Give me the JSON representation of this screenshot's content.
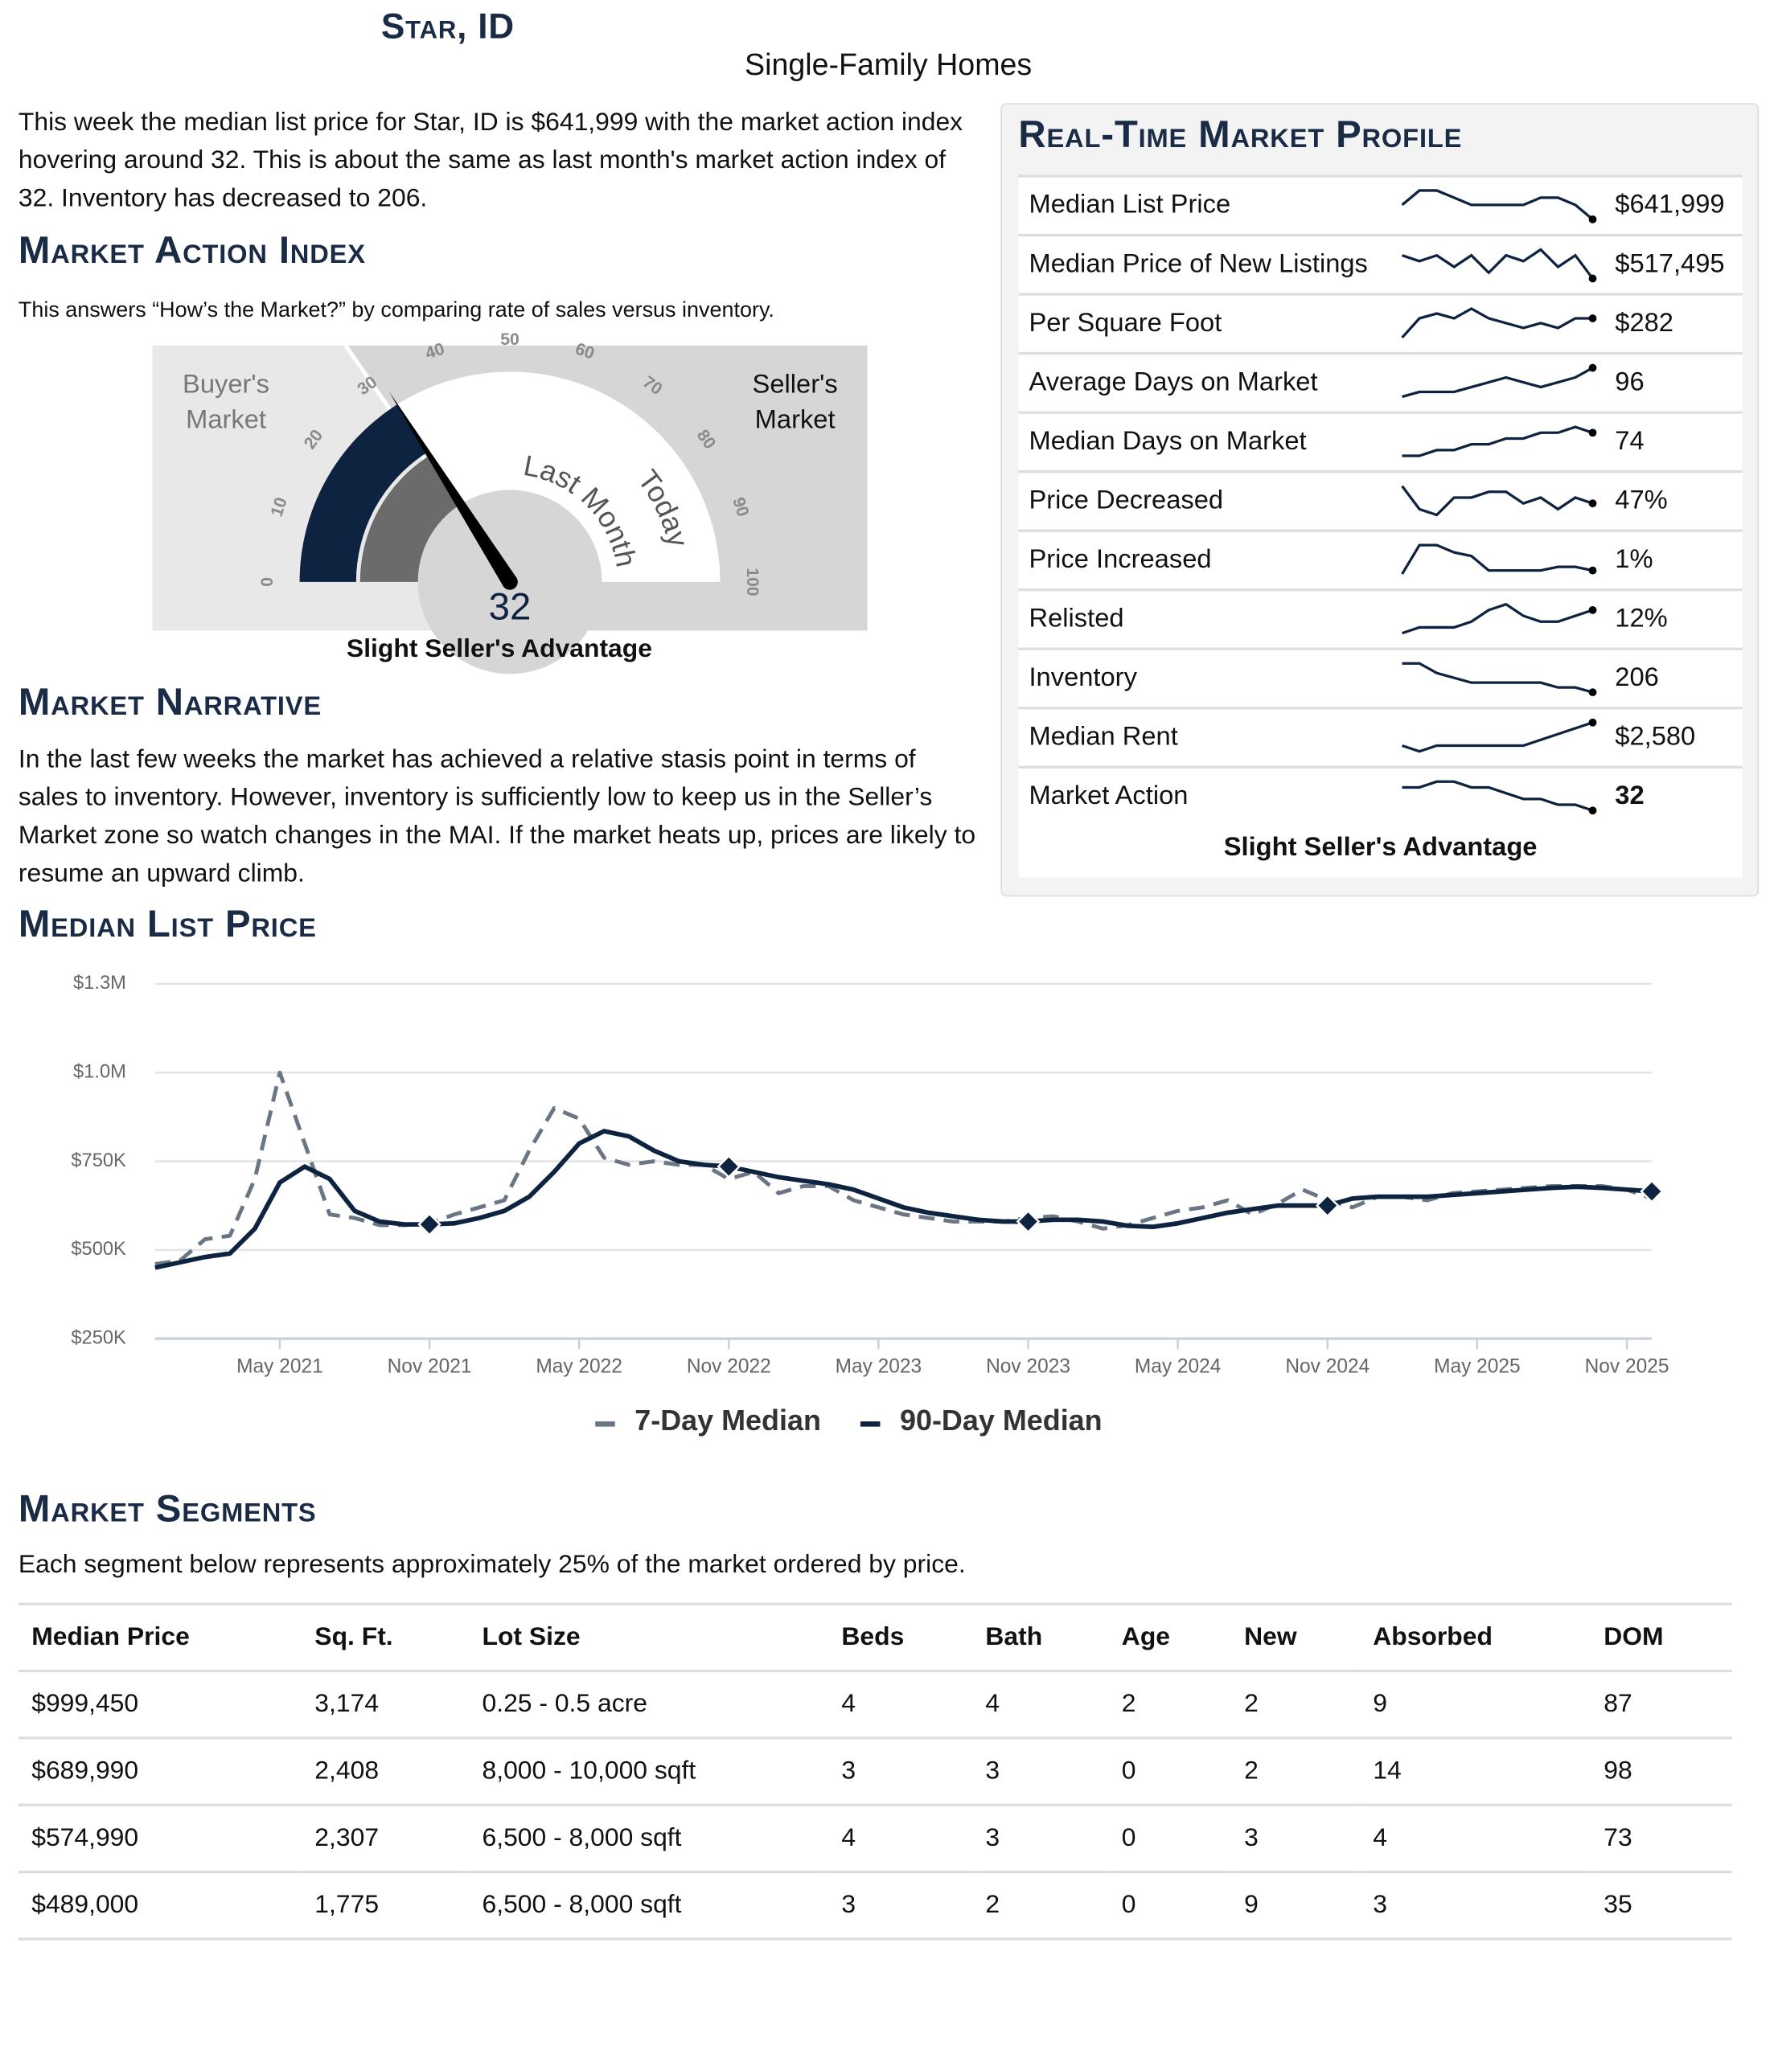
{
  "header": {
    "title": "Star, ID",
    "subtitle": "Single-Family Homes"
  },
  "intro": "This week the median list price for Star, ID is $641,999 with the market action index hovering around 32. This is about the same as last month's market action index of 32. Inventory has decreased to 206.",
  "market_action_index": {
    "heading": "Market Action Index",
    "description": "This answers “How’s the Market?” by comparing rate of sales versus inventory.",
    "gauge": {
      "value": 32,
      "value_label": "32",
      "last_month": 32,
      "range": [
        0,
        100
      ],
      "ticks": [
        0,
        10,
        20,
        30,
        40,
        50,
        60,
        70,
        80,
        90,
        100
      ],
      "buyers_label": "Buyer's Market",
      "sellers_label": "Seller's Market",
      "last_month_label": "Last Month",
      "today_label": "Today",
      "verdict": "Slight Seller's Advantage"
    }
  },
  "narrative": {
    "heading": "Market Narrative",
    "text": "In the last few weeks the market has achieved a relative stasis point in terms of sales to inventory. However, inventory is sufficiently low to keep us in the Seller’s Market zone so watch changes in the MAI. If the market heats up, prices are likely to resume an upward climb."
  },
  "profile": {
    "heading": "Real-Time Market Profile",
    "rows": [
      {
        "label": "Median List Price",
        "value": "$641,999",
        "trend": [
          5,
          7,
          7,
          6,
          5,
          5,
          5,
          5,
          6,
          6,
          5,
          3
        ]
      },
      {
        "label": "Median Price of New Listings",
        "value": "$517,495",
        "trend": [
          6,
          5,
          6,
          4,
          6,
          3,
          6,
          5,
          7,
          4,
          6,
          2
        ]
      },
      {
        "label": "Per Square Foot",
        "value": "$282",
        "trend": [
          2,
          6,
          7,
          6,
          8,
          6,
          5,
          4,
          5,
          4,
          6,
          6
        ]
      },
      {
        "label": "Average Days on Market",
        "value": "96",
        "trend": [
          2,
          3,
          3,
          3,
          4,
          5,
          6,
          5,
          4,
          5,
          6,
          8
        ]
      },
      {
        "label": "Median Days on Market",
        "value": "74",
        "trend": [
          1,
          1,
          2,
          2,
          3,
          3,
          4,
          4,
          5,
          5,
          6,
          5
        ]
      },
      {
        "label": "Price Decreased",
        "value": "47%",
        "trend": [
          8,
          4,
          3,
          6,
          6,
          7,
          7,
          5,
          6,
          4,
          6,
          5
        ]
      },
      {
        "label": "Price Increased",
        "value": "1%",
        "trend": [
          0,
          8,
          8,
          6,
          5,
          1,
          1,
          1,
          1,
          2,
          2,
          1
        ]
      },
      {
        "label": "Relisted",
        "value": "12%",
        "trend": [
          2,
          3,
          3,
          3,
          4,
          6,
          7,
          5,
          4,
          4,
          5,
          6
        ]
      },
      {
        "label": "Inventory",
        "value": "206",
        "trend": [
          9,
          9,
          7,
          6,
          5,
          5,
          5,
          5,
          5,
          4,
          4,
          3
        ]
      },
      {
        "label": "Median Rent",
        "value": "$2,580",
        "trend": [
          3,
          2,
          3,
          3,
          3,
          3,
          3,
          3,
          4,
          5,
          6,
          7
        ]
      },
      {
        "label": "Market Action",
        "value": "32",
        "trend": [
          6,
          6,
          7,
          7,
          6,
          6,
          5,
          4,
          4,
          3,
          3,
          2
        ]
      }
    ],
    "verdict": "Slight Seller's Advantage"
  },
  "chart_data": {
    "type": "line",
    "title": "Median List Price",
    "x": [
      "2020-12",
      "2021-01",
      "2021-02",
      "2021-03",
      "2021-04",
      "2021-05",
      "2021-06",
      "2021-07",
      "2021-08",
      "2021-09",
      "2021-10",
      "2021-11",
      "2021-12",
      "2022-01",
      "2022-02",
      "2022-03",
      "2022-04",
      "2022-05",
      "2022-06",
      "2022-07",
      "2022-08",
      "2022-09",
      "2022-10",
      "2022-11",
      "2022-12",
      "2023-01",
      "2023-02",
      "2023-03",
      "2023-04",
      "2023-05",
      "2023-06",
      "2023-07",
      "2023-08",
      "2023-09",
      "2023-10",
      "2023-11",
      "2023-12",
      "2024-01",
      "2024-02",
      "2024-03",
      "2024-04",
      "2024-05",
      "2024-06",
      "2024-07",
      "2024-08",
      "2024-09",
      "2024-10",
      "2024-11",
      "2024-12",
      "2025-01",
      "2025-02",
      "2025-03",
      "2025-04",
      "2025-05",
      "2025-06",
      "2025-07",
      "2025-08",
      "2025-09",
      "2025-10",
      "2025-11",
      "2025-12"
    ],
    "xlim": [
      "2020-12",
      "2025-12"
    ],
    "xticks": [
      {
        "value": "2021-05",
        "label": "May 2021"
      },
      {
        "value": "2021-11",
        "label": "Nov 2021"
      },
      {
        "value": "2022-05",
        "label": "May 2022"
      },
      {
        "value": "2022-11",
        "label": "Nov 2022"
      },
      {
        "value": "2023-05",
        "label": "May 2023"
      },
      {
        "value": "2023-11",
        "label": "Nov 2023"
      },
      {
        "value": "2024-05",
        "label": "May 2024"
      },
      {
        "value": "2024-11",
        "label": "Nov 2024"
      },
      {
        "value": "2025-05",
        "label": "May 2025"
      },
      {
        "value": "2025-11",
        "label": "Nov 2025"
      }
    ],
    "ylim": [
      250000,
      1250000
    ],
    "yticks": [
      {
        "value": 250000,
        "label": "$250K"
      },
      {
        "value": 500000,
        "label": "$500K"
      },
      {
        "value": 750000,
        "label": "$750K"
      },
      {
        "value": 1000000,
        "label": "$1.0M"
      },
      {
        "value": 1250000,
        "label": "$1.3M"
      }
    ],
    "grid": true,
    "legend": "bottom",
    "series": [
      {
        "name": "7-Day Median",
        "color": "#6b7685",
        "dashed": true,
        "values": [
          460000,
          470000,
          530000,
          540000,
          700000,
          1000000,
          800000,
          600000,
          590000,
          570000,
          570000,
          575000,
          600000,
          620000,
          640000,
          780000,
          900000,
          870000,
          760000,
          740000,
          750000,
          740000,
          740000,
          700000,
          720000,
          660000,
          680000,
          680000,
          640000,
          620000,
          600000,
          590000,
          580000,
          580000,
          580000,
          590000,
          595000,
          580000,
          560000,
          570000,
          590000,
          610000,
          620000,
          640000,
          600000,
          630000,
          670000,
          640000,
          620000,
          650000,
          650000,
          640000,
          660000,
          665000,
          670000,
          675000,
          680000,
          680000,
          680000,
          670000,
          645000
        ]
      },
      {
        "name": "90-Day Median",
        "color": "#0e2340",
        "dashed": false,
        "values": [
          450000,
          465000,
          480000,
          490000,
          560000,
          690000,
          735000,
          700000,
          610000,
          580000,
          572000,
          572000,
          575000,
          590000,
          610000,
          650000,
          720000,
          800000,
          835000,
          820000,
          780000,
          750000,
          740000,
          735000,
          720000,
          705000,
          695000,
          685000,
          670000,
          645000,
          620000,
          605000,
          595000,
          585000,
          580000,
          580000,
          585000,
          585000,
          580000,
          568000,
          565000,
          575000,
          590000,
          605000,
          615000,
          625000,
          625000,
          625000,
          645000,
          650000,
          650000,
          650000,
          655000,
          660000,
          665000,
          670000,
          675000,
          678000,
          675000,
          670000,
          665000
        ]
      }
    ]
  },
  "segments": {
    "heading": "Market Segments",
    "description": "Each segment below represents approximately 25% of the market ordered by price.",
    "columns": [
      "Median Price",
      "Sq. Ft.",
      "Lot Size",
      "Beds",
      "Bath",
      "Age",
      "New",
      "Absorbed",
      "DOM"
    ],
    "rows": [
      [
        "$999,450",
        "3,174",
        "0.25 - 0.5 acre",
        "4",
        "4",
        "2",
        "2",
        "9",
        "87"
      ],
      [
        "$689,990",
        "2,408",
        "8,000 - 10,000 sqft",
        "3",
        "3",
        "0",
        "2",
        "14",
        "98"
      ],
      [
        "$574,990",
        "2,307",
        "6,500 - 8,000 sqft",
        "4",
        "3",
        "0",
        "3",
        "4",
        "73"
      ],
      [
        "$489,000",
        "1,775",
        "6,500 - 8,000 sqft",
        "3",
        "2",
        "0",
        "9",
        "3",
        "35"
      ]
    ]
  }
}
